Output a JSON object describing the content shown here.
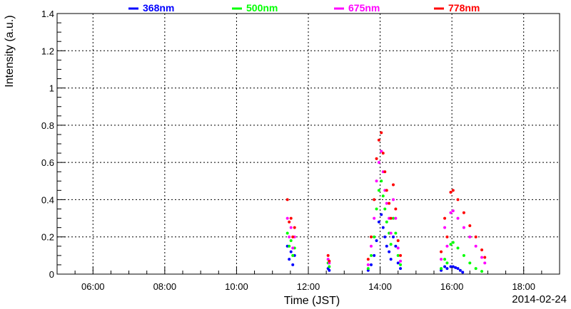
{
  "chart_data": {
    "type": "scatter",
    "title": "",
    "xlabel": "Time (JST)",
    "ylabel": "Intensity (a.u.)",
    "date": "2014-02-24",
    "xlim": [
      "05:00",
      "19:00"
    ],
    "ylim": [
      0,
      1.4
    ],
    "x_ticks": [
      "06:00",
      "08:00",
      "10:00",
      "12:00",
      "14:00",
      "16:00",
      "18:00"
    ],
    "y_ticks": [
      "0",
      "0.2",
      "0.4",
      "0.6",
      "0.8",
      "1",
      "1.2",
      "1.4"
    ],
    "grid": true,
    "legend_position": "top",
    "series": [
      {
        "name": "368nm",
        "color": "#0000ff",
        "points": [
          [
            "11:25",
            0.15
          ],
          [
            "11:28",
            0.08
          ],
          [
            "11:31",
            0.12
          ],
          [
            "11:34",
            0.05
          ],
          [
            "11:37",
            0.1
          ],
          [
            "12:33",
            0.03
          ],
          [
            "12:35",
            0.02
          ],
          [
            "13:40",
            0.02
          ],
          [
            "13:45",
            0.05
          ],
          [
            "13:50",
            0.1
          ],
          [
            "13:54",
            0.18
          ],
          [
            "13:58",
            0.28
          ],
          [
            "14:02",
            0.32
          ],
          [
            "14:05",
            0.25
          ],
          [
            "14:08",
            0.2
          ],
          [
            "14:11",
            0.15
          ],
          [
            "14:15",
            0.12
          ],
          [
            "14:18",
            0.08
          ],
          [
            "14:22",
            0.2
          ],
          [
            "14:26",
            0.15
          ],
          [
            "14:30",
            0.06
          ],
          [
            "14:34",
            0.03
          ],
          [
            "15:42",
            0.02
          ],
          [
            "15:48",
            0.04
          ],
          [
            "15:52",
            0.03
          ],
          [
            "15:58",
            0.04
          ],
          [
            "16:02",
            0.04
          ],
          [
            "16:06",
            0.035
          ],
          [
            "16:10",
            0.03
          ],
          [
            "16:14",
            0.02
          ],
          [
            "16:18",
            0.01
          ]
        ]
      },
      {
        "name": "500nm",
        "color": "#00ff00",
        "points": [
          [
            "11:25",
            0.22
          ],
          [
            "11:28",
            0.15
          ],
          [
            "11:31",
            0.18
          ],
          [
            "11:34",
            0.1
          ],
          [
            "11:37",
            0.14
          ],
          [
            "12:33",
            0.06
          ],
          [
            "12:35",
            0.04
          ],
          [
            "13:40",
            0.03
          ],
          [
            "13:45",
            0.1
          ],
          [
            "13:50",
            0.2
          ],
          [
            "13:54",
            0.35
          ],
          [
            "13:58",
            0.45
          ],
          [
            "14:02",
            0.5
          ],
          [
            "14:05",
            0.42
          ],
          [
            "14:08",
            0.35
          ],
          [
            "14:11",
            0.28
          ],
          [
            "14:15",
            0.22
          ],
          [
            "14:18",
            0.16
          ],
          [
            "14:22",
            0.3
          ],
          [
            "14:26",
            0.22
          ],
          [
            "14:30",
            0.1
          ],
          [
            "14:34",
            0.05
          ],
          [
            "15:42",
            0.03
          ],
          [
            "15:48",
            0.08
          ],
          [
            "15:52",
            0.06
          ],
          [
            "15:58",
            0.16
          ],
          [
            "16:02",
            0.17
          ],
          [
            "16:10",
            0.14
          ],
          [
            "16:20",
            0.1
          ],
          [
            "16:30",
            0.06
          ],
          [
            "16:40",
            0.03
          ],
          [
            "16:50",
            0.015
          ]
        ]
      },
      {
        "name": "675nm",
        "color": "#ff00ff",
        "points": [
          [
            "11:25",
            0.3
          ],
          [
            "11:28",
            0.2
          ],
          [
            "11:31",
            0.25
          ],
          [
            "11:34",
            0.14
          ],
          [
            "11:37",
            0.2
          ],
          [
            "12:33",
            0.08
          ],
          [
            "12:35",
            0.06
          ],
          [
            "13:40",
            0.05
          ],
          [
            "13:45",
            0.15
          ],
          [
            "13:50",
            0.3
          ],
          [
            "13:54",
            0.5
          ],
          [
            "13:58",
            0.6
          ],
          [
            "14:02",
            0.66
          ],
          [
            "14:05",
            0.55
          ],
          [
            "14:08",
            0.45
          ],
          [
            "14:11",
            0.38
          ],
          [
            "14:15",
            0.3
          ],
          [
            "14:18",
            0.22
          ],
          [
            "14:22",
            0.4
          ],
          [
            "14:26",
            0.3
          ],
          [
            "14:30",
            0.14
          ],
          [
            "14:34",
            0.07
          ],
          [
            "15:42",
            0.08
          ],
          [
            "15:48",
            0.25
          ],
          [
            "15:52",
            0.15
          ],
          [
            "15:58",
            0.33
          ],
          [
            "16:02",
            0.34
          ],
          [
            "16:10",
            0.3
          ],
          [
            "16:20",
            0.25
          ],
          [
            "16:30",
            0.2
          ],
          [
            "16:40",
            0.15
          ],
          [
            "16:50",
            0.09
          ],
          [
            "16:55",
            0.06
          ]
        ]
      },
      {
        "name": "778nm",
        "color": "#ff0000",
        "points": [
          [
            "11:25",
            0.4
          ],
          [
            "11:28",
            0.28
          ],
          [
            "11:31",
            0.3
          ],
          [
            "11:34",
            0.2
          ],
          [
            "11:37",
            0.25
          ],
          [
            "12:33",
            0.1
          ],
          [
            "12:35",
            0.07
          ],
          [
            "13:40",
            0.08
          ],
          [
            "13:45",
            0.2
          ],
          [
            "13:50",
            0.4
          ],
          [
            "13:54",
            0.62
          ],
          [
            "13:58",
            0.72
          ],
          [
            "14:02",
            0.76
          ],
          [
            "14:05",
            0.65
          ],
          [
            "14:08",
            0.55
          ],
          [
            "14:11",
            0.45
          ],
          [
            "14:15",
            0.38
          ],
          [
            "14:18",
            0.3
          ],
          [
            "14:22",
            0.48
          ],
          [
            "14:26",
            0.35
          ],
          [
            "14:30",
            0.18
          ],
          [
            "14:34",
            0.1
          ],
          [
            "15:42",
            0.12
          ],
          [
            "15:48",
            0.3
          ],
          [
            "15:52",
            0.2
          ],
          [
            "15:58",
            0.44
          ],
          [
            "16:02",
            0.45
          ],
          [
            "16:10",
            0.4
          ],
          [
            "16:20",
            0.33
          ],
          [
            "16:30",
            0.26
          ],
          [
            "16:40",
            0.2
          ],
          [
            "16:50",
            0.13
          ],
          [
            "16:55",
            0.09
          ]
        ]
      }
    ]
  }
}
